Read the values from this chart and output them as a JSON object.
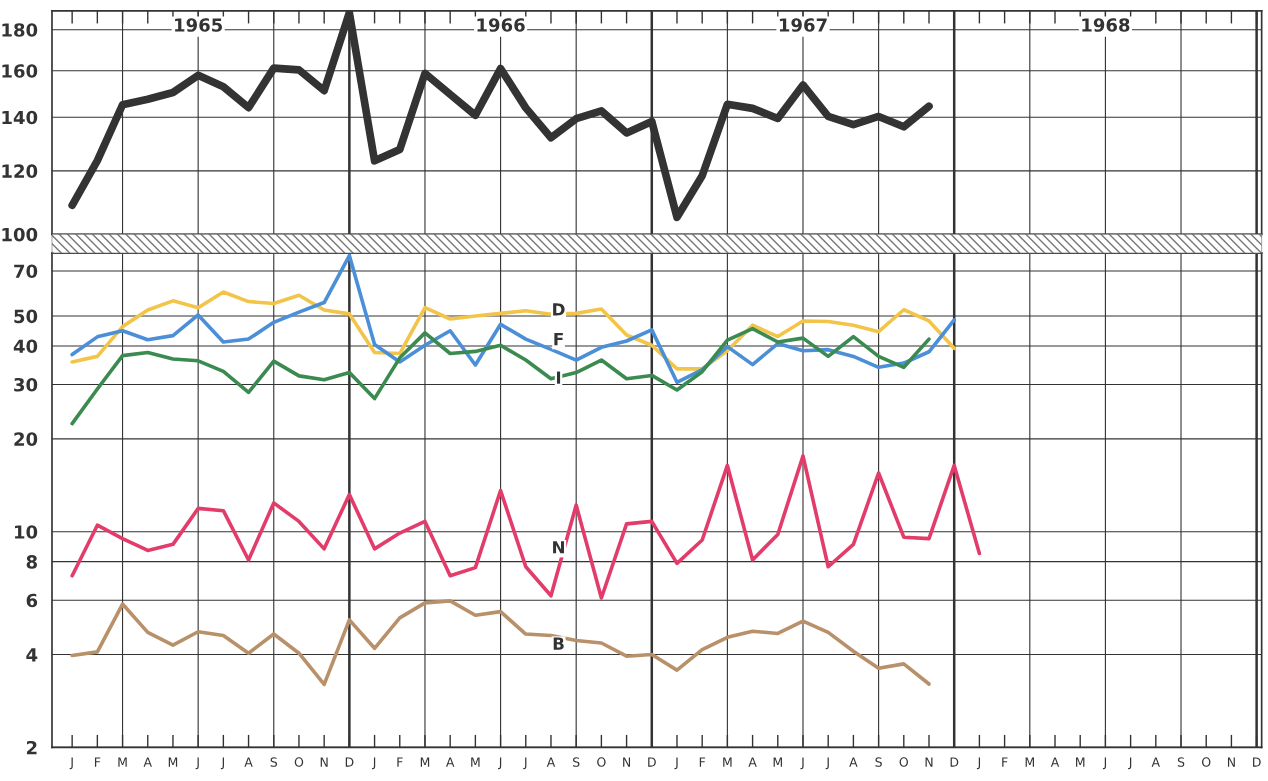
{
  "chart_data": [
    {
      "type": "line",
      "log": true,
      "grid": true,
      "ylim": [
        100,
        190
      ],
      "yticks": [
        100,
        120,
        140,
        160,
        180
      ],
      "categories": [
        null,
        null,
        null,
        null,
        null,
        null,
        null,
        null,
        null,
        null,
        null,
        null,
        null,
        null,
        null,
        null,
        null,
        null,
        null,
        null,
        null,
        null,
        null,
        null,
        null,
        null,
        null,
        null,
        null,
        null,
        null,
        null,
        null,
        null,
        null,
        null,
        null,
        null,
        null,
        null,
        null,
        null,
        null,
        null,
        null,
        null,
        null,
        null
      ],
      "annotations": [
        "1965",
        "1966",
        "1967",
        "1968"
      ],
      "series": [
        {
          "color": "#333333",
          "values": [
            108.7,
            123.6,
            145.1,
            147.4,
            150.3,
            157.9,
            152.8,
            143.9,
            161.2,
            160.4,
            151.1,
            189,
            123.5,
            127.6,
            158.8,
            149.5,
            140.8,
            161,
            143.8,
            132,
            139.4,
            142.6,
            133.8,
            138.3,
            105,
            118.3,
            145.3,
            143.6,
            139.5,
            153.6,
            140.3,
            137,
            140.3,
            136.2,
            144.5,
            null,
            null,
            null,
            null,
            null,
            null,
            null,
            null,
            null,
            null,
            null,
            null,
            null
          ]
        }
      ]
    },
    {
      "type": "line",
      "log": true,
      "grid": true,
      "ylim": [
        2,
        80
      ],
      "yticks": [
        2,
        4,
        6,
        8,
        10,
        20,
        30,
        40,
        50,
        70
      ],
      "categories": [
        "J",
        "F",
        "M",
        "A",
        "M",
        "J",
        "J",
        "A",
        "S",
        "O",
        "N",
        "D",
        "J",
        "F",
        "M",
        "A",
        "M",
        "J",
        "J",
        "A",
        "S",
        "O",
        "N",
        "D",
        "J",
        "F",
        "M",
        "A",
        "M",
        "J",
        "J",
        "A",
        "S",
        "O",
        "N",
        "D",
        "J",
        "F",
        "M",
        "A",
        "M",
        "J",
        "J",
        "A",
        "S",
        "O",
        "N",
        "D"
      ],
      "series": [
        {
          "name": "D",
          "color": "#f2c54a",
          "values": [
            35.5,
            37,
            46.2,
            52.3,
            56,
            53.2,
            59.8,
            55.7,
            54.9,
            58.4,
            52.3,
            50.8,
            38.1,
            37.8,
            53.2,
            48.9,
            50,
            51,
            52,
            50.7,
            51,
            52.7,
            43.4,
            40.2,
            33.7,
            33.7,
            38.6,
            46.7,
            42.9,
            48.2,
            48,
            46.7,
            44.5,
            52.4,
            48.2,
            39.3,
            null,
            null,
            null,
            null,
            null,
            null,
            null,
            null,
            null,
            null,
            null,
            null
          ]
        },
        {
          "name": "F",
          "color": "#4a8fd8",
          "values": [
            37.5,
            42.8,
            44.8,
            41.9,
            43.2,
            50.4,
            41.2,
            42.1,
            47.7,
            51.5,
            55.3,
            78.5,
            40.4,
            35.5,
            40.2,
            44.8,
            34.7,
            47,
            42.1,
            39,
            36,
            39.6,
            41.5,
            45.1,
            30.5,
            33.5,
            39.8,
            34.8,
            40.7,
            38.6,
            38.9,
            37,
            34.1,
            35.2,
            38.3,
            48.6,
            null,
            null,
            null,
            null,
            null,
            null,
            null,
            null,
            null,
            null,
            null,
            null
          ]
        },
        {
          "name": "I",
          "color": "#3b8a50",
          "values": [
            22.4,
            29,
            37.2,
            38.1,
            36.3,
            35.8,
            33.1,
            28.3,
            35.7,
            32,
            31.1,
            32.8,
            27,
            36.6,
            44.1,
            37.8,
            38.4,
            40.2,
            36,
            31.3,
            32.8,
            36,
            31.3,
            32.1,
            28.8,
            33,
            41.8,
            45.5,
            41.2,
            42.4,
            37,
            42.9,
            37,
            34.1,
            42.1,
            null,
            null,
            null,
            null,
            null,
            null,
            null,
            null,
            null,
            null,
            null,
            null,
            null
          ]
        },
        {
          "name": "N",
          "color": "#e23d6a",
          "values": [
            7.2,
            10.5,
            9.5,
            8.7,
            9.1,
            11.9,
            11.7,
            8.1,
            12.4,
            10.8,
            8.8,
            13.2,
            8.8,
            9.9,
            10.8,
            7.2,
            7.65,
            13.6,
            7.7,
            6.2,
            12.2,
            6.1,
            10.6,
            10.8,
            7.9,
            9.4,
            16.4,
            8.1,
            9.8,
            17.6,
            7.7,
            9.1,
            15.5,
            9.6,
            9.5,
            16.4,
            8.5,
            null,
            null,
            null,
            null,
            null,
            null,
            null,
            null,
            null,
            null,
            null
          ]
        },
        {
          "name": "B",
          "color": "#b8916a",
          "values": [
            3.97,
            4.08,
            5.83,
            4.72,
            4.29,
            4.74,
            4.61,
            4.04,
            4.66,
            4.04,
            3.2,
            5.18,
            4.19,
            5.26,
            5.88,
            5.97,
            5.36,
            5.51,
            4.66,
            4.61,
            4.44,
            4.36,
            3.95,
            4.0,
            3.56,
            4.15,
            4.55,
            4.76,
            4.68,
            5.13,
            4.72,
            4.1,
            3.61,
            3.73,
            3.21,
            null,
            null,
            null,
            null,
            null,
            null,
            null,
            null,
            null,
            null,
            null,
            null,
            null
          ]
        }
      ]
    }
  ]
}
